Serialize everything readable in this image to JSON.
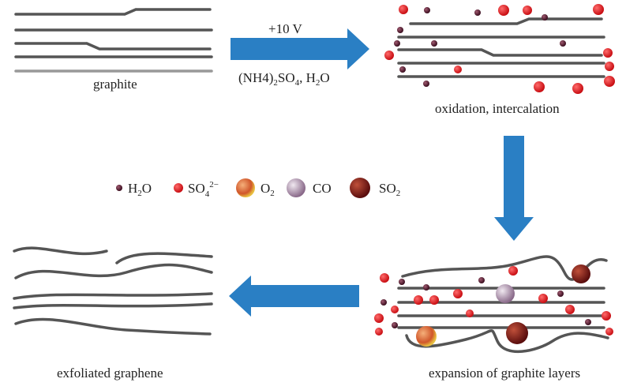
{
  "steps": {
    "graphite": "graphite",
    "conditions": {
      "voltage": "+10 V",
      "reagents": [
        "(NH4)",
        "2",
        "SO",
        "4",
        ", H",
        "2",
        "O"
      ]
    },
    "oxidation": "oxidation, intercalation",
    "expansion": "expansion of graphite layers",
    "exfoliated": "exfoliated graphene"
  },
  "legend": [
    {
      "label": [
        "H",
        "2",
        "O"
      ]
    },
    {
      "label": [
        "SO",
        "4",
        "2−"
      ]
    },
    {
      "label": [
        "O",
        "2"
      ]
    },
    {
      "label": [
        "CO"
      ]
    },
    {
      "label": [
        "SO",
        "2"
      ]
    }
  ]
}
